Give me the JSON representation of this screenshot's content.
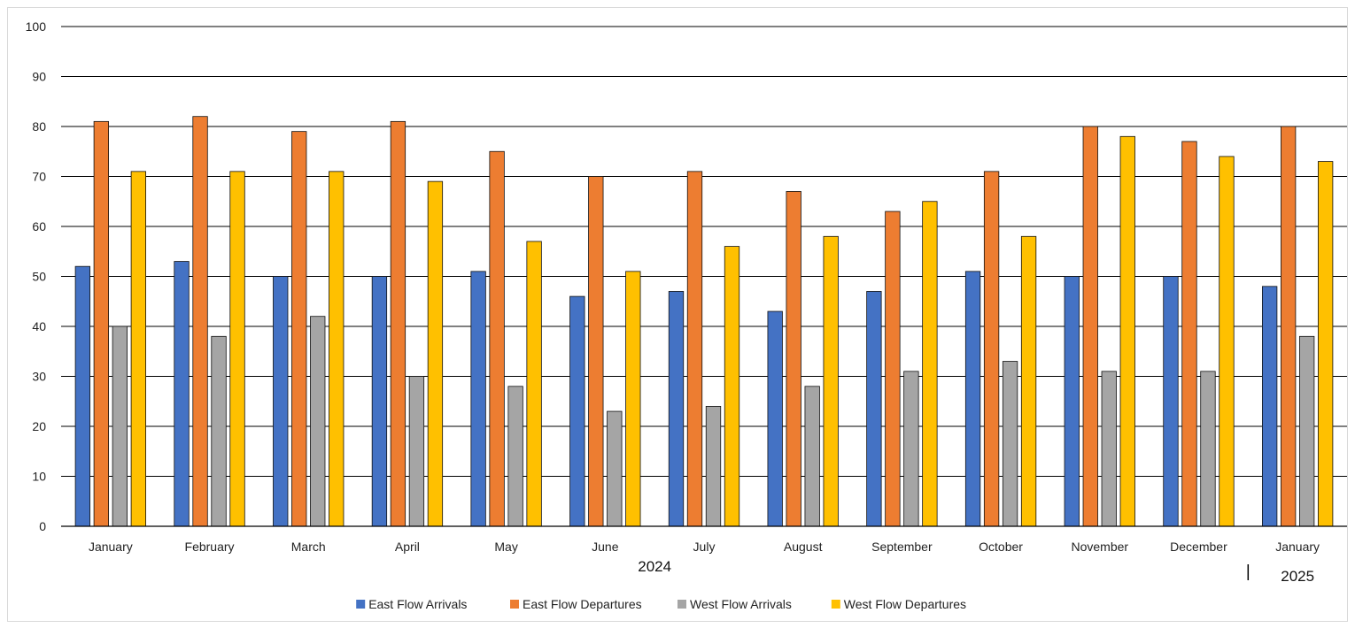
{
  "chart_data": {
    "type": "bar",
    "title": "",
    "xlabel": "",
    "ylabel": "",
    "ylim": [
      0,
      100
    ],
    "yticks": [
      0,
      10,
      20,
      30,
      40,
      50,
      60,
      70,
      80,
      90,
      100
    ],
    "grid": true,
    "legend_position": "bottom",
    "categories": [
      "January",
      "February",
      "March",
      "April",
      "May",
      "June",
      "July",
      "August",
      "September",
      "October",
      "November",
      "December",
      "January"
    ],
    "category_groups": [
      {
        "label": "2024",
        "start": 0,
        "end": 11
      },
      {
        "label": "2025",
        "start": 12,
        "end": 12
      }
    ],
    "series": [
      {
        "name": "East Flow Arrivals",
        "color": "#4472C4",
        "values": [
          52,
          53,
          50,
          50,
          51,
          46,
          47,
          43,
          47,
          51,
          50,
          50,
          48
        ]
      },
      {
        "name": "East Flow Departures",
        "color": "#ED7D31",
        "values": [
          81,
          82,
          79,
          81,
          75,
          70,
          71,
          67,
          63,
          71,
          80,
          77,
          80
        ]
      },
      {
        "name": "West Flow Arrivals",
        "color": "#A5A5A5",
        "values": [
          40,
          38,
          42,
          30,
          28,
          23,
          24,
          28,
          31,
          33,
          31,
          31,
          38
        ]
      },
      {
        "name": "West Flow Departures",
        "color": "#FFC000",
        "values": [
          71,
          71,
          71,
          69,
          57,
          51,
          56,
          58,
          65,
          58,
          78,
          74,
          73
        ]
      }
    ]
  }
}
